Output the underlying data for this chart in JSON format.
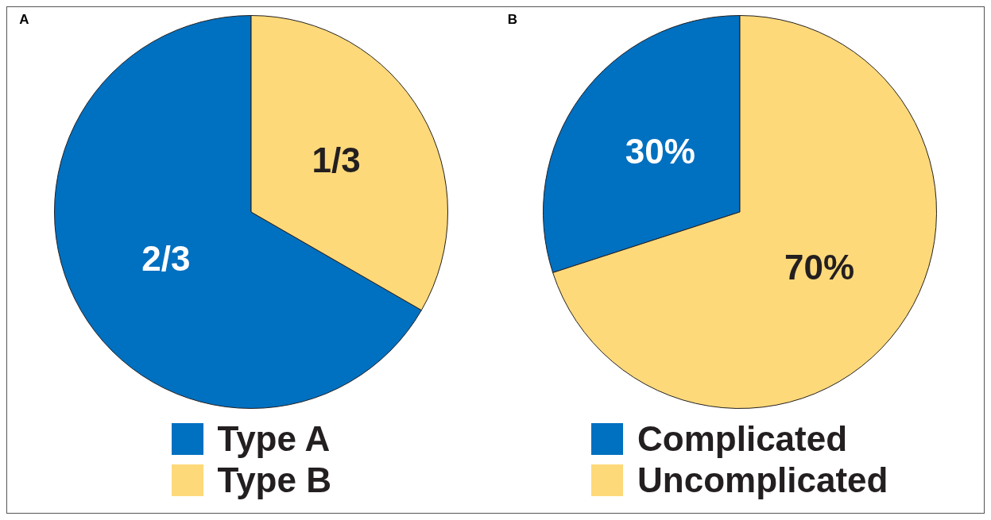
{
  "chart_data": [
    {
      "type": "pie",
      "title": "A",
      "categories": [
        "Type A",
        "Type B"
      ],
      "values": [
        0.6667,
        0.3333
      ],
      "colors": [
        "#0070c0",
        "#fdd97a"
      ],
      "value_labels": [
        "2/3",
        "1/3"
      ],
      "legend": "bottom"
    },
    {
      "type": "pie",
      "title": "B",
      "categories": [
        "Complicated",
        "Uncomplicated"
      ],
      "values": [
        30,
        70
      ],
      "colors": [
        "#0070c0",
        "#fdd97a"
      ],
      "value_labels": [
        "30%",
        "70%"
      ],
      "legend": "bottom"
    }
  ]
}
